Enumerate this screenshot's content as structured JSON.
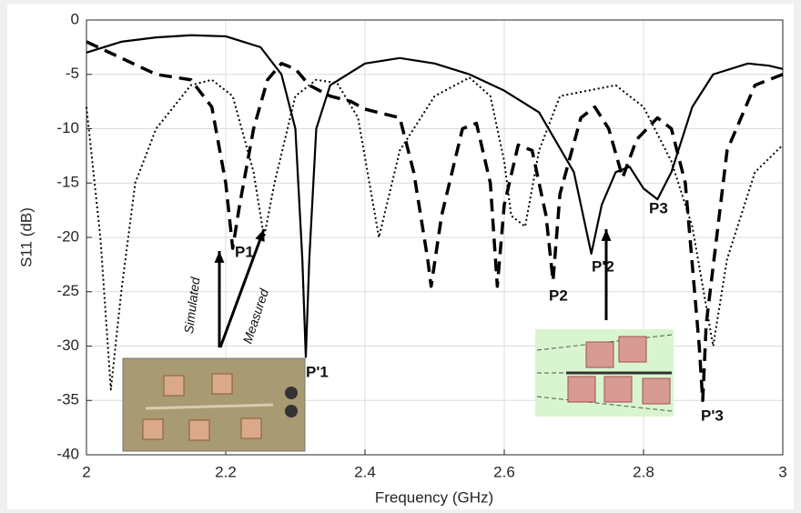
{
  "chart_data": {
    "type": "line",
    "x_label": "Frequency (GHz)",
    "y_label": "S11 (dB)",
    "xlim": [
      2,
      3
    ],
    "xticks": [
      2,
      2.2,
      2.4,
      2.6,
      2.8,
      3
    ],
    "ylim": [
      -40,
      0
    ],
    "yticks": [
      -40,
      -35,
      -30,
      -25,
      -20,
      -15,
      -10,
      -5,
      0
    ],
    "grid": true,
    "series": [
      {
        "style": "solid",
        "color": "#000000",
        "x": [
          2,
          2.05,
          2.1,
          2.15,
          2.2,
          2.25,
          2.28,
          2.3,
          2.31,
          2.315,
          2.32,
          2.33,
          2.35,
          2.4,
          2.45,
          2.5,
          2.55,
          2.6,
          2.65,
          2.7,
          2.725,
          2.74,
          2.76,
          2.78,
          2.8,
          2.82,
          2.84,
          2.87,
          2.9,
          2.95,
          2.98,
          3
        ],
        "values": [
          -3,
          -2,
          -1.6,
          -1.4,
          -1.5,
          -2.5,
          -5,
          -10,
          -22,
          -31,
          -22,
          -10,
          -6,
          -4,
          -3.5,
          -4,
          -5,
          -6.5,
          -8.5,
          -14,
          -21.5,
          -17,
          -14,
          -13.5,
          -15.5,
          -16.5,
          -14,
          -8,
          -5,
          -4,
          -4.2,
          -4.5
        ]
      },
      {
        "style": "dashed",
        "color": "#000000",
        "x": [
          2,
          2.05,
          2.1,
          2.15,
          2.18,
          2.2,
          2.21,
          2.22,
          2.24,
          2.26,
          2.28,
          2.3,
          2.32,
          2.35,
          2.38,
          2.4,
          2.45,
          2.47,
          2.49,
          2.495,
          2.51,
          2.54,
          2.56,
          2.58,
          2.59,
          2.6,
          2.62,
          2.64,
          2.66,
          2.67,
          2.68,
          2.71,
          2.73,
          2.75,
          2.77,
          2.79,
          2.82,
          2.84,
          2.86,
          2.88,
          2.885,
          2.89,
          2.92,
          2.96,
          3
        ],
        "values": [
          -2,
          -3.5,
          -5,
          -5.5,
          -8,
          -15,
          -21,
          -17,
          -10,
          -5.5,
          -4,
          -4.5,
          -6,
          -7,
          -7.5,
          -8.2,
          -9,
          -14,
          -22,
          -24.5,
          -18,
          -10,
          -9.5,
          -15,
          -24.5,
          -17,
          -11.5,
          -12,
          -18,
          -24,
          -16,
          -9,
          -8,
          -10,
          -14.5,
          -11,
          -9,
          -10,
          -15,
          -30,
          -35,
          -28,
          -12,
          -6,
          -5
        ]
      },
      {
        "style": "dotted",
        "color": "#000000",
        "x": [
          2,
          2.02,
          2.035,
          2.05,
          2.07,
          2.1,
          2.15,
          2.18,
          2.21,
          2.24,
          2.255,
          2.27,
          2.3,
          2.33,
          2.36,
          2.39,
          2.42,
          2.45,
          2.5,
          2.55,
          2.58,
          2.6,
          2.61,
          2.63,
          2.65,
          2.68,
          2.72,
          2.76,
          2.8,
          2.84,
          2.87,
          2.9,
          2.92,
          2.96,
          3
        ],
        "values": [
          -8,
          -20,
          -34,
          -25,
          -15,
          -10,
          -6,
          -5.5,
          -7,
          -14,
          -20,
          -15,
          -7,
          -5.5,
          -5.8,
          -9,
          -20,
          -12,
          -7,
          -5.3,
          -7,
          -13,
          -18,
          -19,
          -12,
          -7,
          -6.5,
          -6,
          -8,
          -13,
          -19,
          -30,
          -22,
          -14,
          -11.5
        ]
      }
    ],
    "annotations": [
      "P1",
      "P'1",
      "P2",
      "P'2",
      "P3",
      "P'3",
      "Simulated",
      "Measured"
    ]
  }
}
